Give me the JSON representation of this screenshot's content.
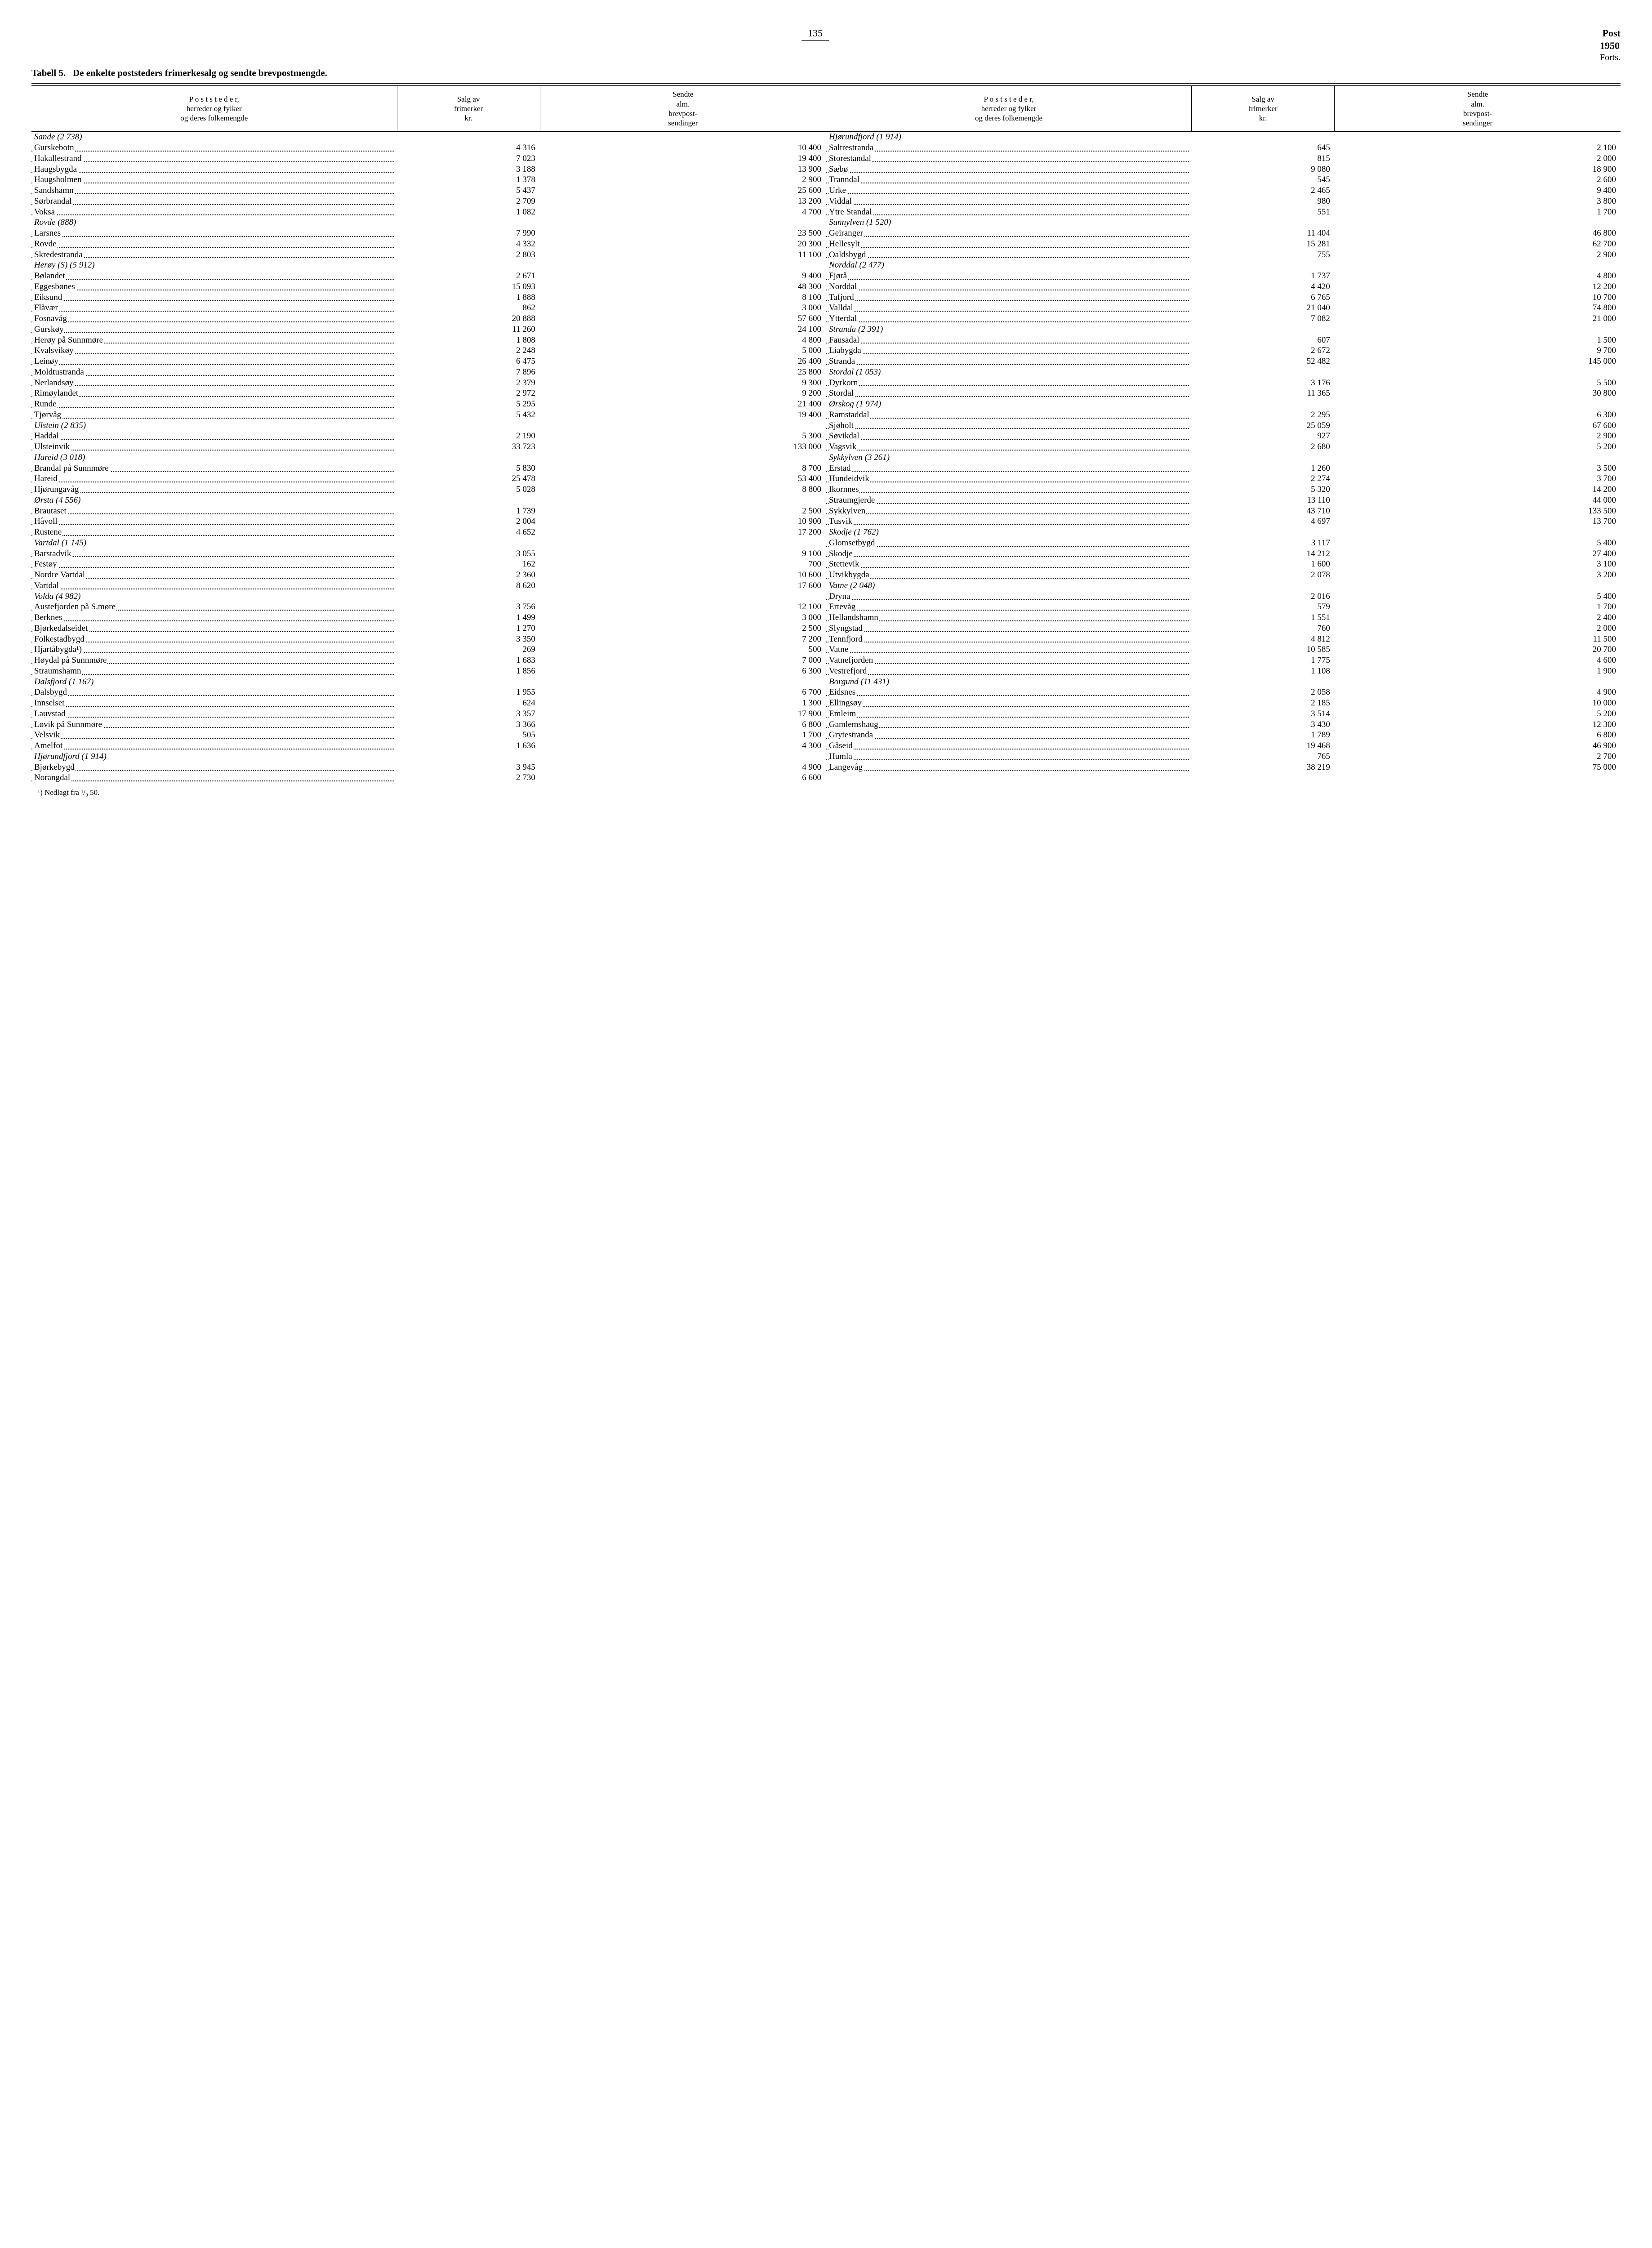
{
  "page_number": "135",
  "header_right": {
    "post": "Post",
    "year": "1950",
    "forts": "Forts."
  },
  "caption": {
    "number": "Tabell 5.",
    "text": "De enkelte poststeders frimerkesalg og sendte brevpostmengde."
  },
  "col_headers": {
    "places": "P o s t s t e d e r,\nherreder og fylker\nog deres folkemengde",
    "stamps": "Salg av\nfrimerker\nkr.",
    "mail": "Sendte\nalm.\nbrevpost-\nsendinger"
  },
  "thousand_sep": " ",
  "left_rows": [
    {
      "type": "group",
      "label": "Sande  (2 738)"
    },
    {
      "type": "row",
      "label": "Gurskebotn",
      "v1": 4316,
      "v2": 10400
    },
    {
      "type": "row",
      "label": "Hakallestrand",
      "v1": 7023,
      "v2": 19400
    },
    {
      "type": "row",
      "label": "Haugsbygda",
      "v1": 3188,
      "v2": 13900
    },
    {
      "type": "row",
      "label": "Haugsholmen",
      "v1": 1378,
      "v2": 2900
    },
    {
      "type": "row",
      "label": "Sandshamn",
      "v1": 5437,
      "v2": 25600
    },
    {
      "type": "row",
      "label": "Sørbrandal",
      "v1": 2709,
      "v2": 13200
    },
    {
      "type": "row",
      "label": "Voksa",
      "v1": 1082,
      "v2": 4700
    },
    {
      "type": "group",
      "label": "Rovde  (888)"
    },
    {
      "type": "row",
      "label": "Larsnes",
      "v1": 7990,
      "v2": 23500
    },
    {
      "type": "row",
      "label": "Rovde",
      "v1": 4332,
      "v2": 20300
    },
    {
      "type": "row",
      "label": "Skredestranda",
      "v1": 2803,
      "v2": 11100
    },
    {
      "type": "group",
      "label": "Herøy  (S)  (5 912)"
    },
    {
      "type": "row",
      "label": "Bølandet",
      "v1": 2671,
      "v2": 9400
    },
    {
      "type": "row",
      "label": "Eggesbønes",
      "v1": 15093,
      "v2": 48300
    },
    {
      "type": "row",
      "label": "Eiksund",
      "v1": 1888,
      "v2": 8100
    },
    {
      "type": "row",
      "label": "Flåvær",
      "v1": 862,
      "v2": 3000
    },
    {
      "type": "row",
      "label": "Fosnavåg",
      "v1": 20888,
      "v2": 57600
    },
    {
      "type": "row",
      "label": "Gurskøy",
      "v1": 11260,
      "v2": 24100
    },
    {
      "type": "row",
      "label": "Herøy på Sunnmøre",
      "v1": 1808,
      "v2": 4800
    },
    {
      "type": "row",
      "label": "Kvalsvikøy",
      "v1": 2248,
      "v2": 5000
    },
    {
      "type": "row",
      "label": "Leinøy",
      "v1": 6475,
      "v2": 26400
    },
    {
      "type": "row",
      "label": "Moldtustranda",
      "v1": 7896,
      "v2": 25800
    },
    {
      "type": "row",
      "label": "Nerlandsøy",
      "v1": 2379,
      "v2": 9300
    },
    {
      "type": "row",
      "label": "Rimøylandet",
      "v1": 2972,
      "v2": 9200
    },
    {
      "type": "row",
      "label": "Runde",
      "v1": 5295,
      "v2": 21400
    },
    {
      "type": "row",
      "label": "Tjørvåg",
      "v1": 5432,
      "v2": 19400
    },
    {
      "type": "group",
      "label": "Ulstein  (2 835)"
    },
    {
      "type": "row",
      "label": "Haddal",
      "v1": 2190,
      "v2": 5300
    },
    {
      "type": "row",
      "label": "Ulsteinvik",
      "v1": 33723,
      "v2": 133000
    },
    {
      "type": "group",
      "label": "Hareid  (3 018)"
    },
    {
      "type": "row",
      "label": "Brandal på Sunnmøre",
      "v1": 5830,
      "v2": 8700
    },
    {
      "type": "row",
      "label": "Hareid",
      "v1": 25478,
      "v2": 53400
    },
    {
      "type": "row",
      "label": "Hjørungavåg",
      "v1": 5028,
      "v2": 8800
    },
    {
      "type": "group",
      "label": "Ørsta  (4 556)"
    },
    {
      "type": "row",
      "label": "Brautaset",
      "v1": 1739,
      "v2": 2500
    },
    {
      "type": "row",
      "label": "Håvoll",
      "v1": 2004,
      "v2": 10900
    },
    {
      "type": "row",
      "label": "Rustene",
      "v1": 4652,
      "v2": 17200
    },
    {
      "type": "group",
      "label": "Vartdal  (1 145)"
    },
    {
      "type": "row",
      "label": "Barstadvik",
      "v1": 3055,
      "v2": 9100
    },
    {
      "type": "row",
      "label": "Festøy",
      "v1": 162,
      "v2": 700
    },
    {
      "type": "row",
      "label": "Nordre Vartdal",
      "v1": 2360,
      "v2": 10600
    },
    {
      "type": "row",
      "label": "Vartdal",
      "v1": 8620,
      "v2": 17600
    },
    {
      "type": "group",
      "label": "Volda  (4 982)"
    },
    {
      "type": "row",
      "label": "Austefjorden på S.møre",
      "v1": 3756,
      "v2": 12100
    },
    {
      "type": "row",
      "label": "Berknes",
      "v1": 1499,
      "v2": 3000
    },
    {
      "type": "row",
      "label": "Bjørkedalseidet",
      "v1": 1270,
      "v2": 2500
    },
    {
      "type": "row",
      "label": "Folkestadbygd",
      "v1": 3350,
      "v2": 7200
    },
    {
      "type": "row",
      "label": "Hjartåbygda¹)",
      "v1": 269,
      "v2": 500
    },
    {
      "type": "row",
      "label": "Høydal på Sunnmøre",
      "v1": 1683,
      "v2": 7000
    },
    {
      "type": "row",
      "label": "Straumshamn",
      "v1": 1856,
      "v2": 6300
    },
    {
      "type": "group",
      "label": "Dalsfjord  (1 167)"
    },
    {
      "type": "row",
      "label": "Dalsbygd",
      "v1": 1955,
      "v2": 6700
    },
    {
      "type": "row",
      "label": "Innselset",
      "v1": 624,
      "v2": 1300
    },
    {
      "type": "row",
      "label": "Lauvstad",
      "v1": 3357,
      "v2": 17900
    },
    {
      "type": "row",
      "label": "Løvik på Sunnmøre",
      "v1": 3366,
      "v2": 6800
    },
    {
      "type": "row",
      "label": "Velsvik",
      "v1": 505,
      "v2": 1700
    },
    {
      "type": "row",
      "label": "Amelfot",
      "v1": 1636,
      "v2": 4300
    },
    {
      "type": "group",
      "label": "Hjørundfjord  (1 914)"
    },
    {
      "type": "row",
      "label": "Bjørkebygd",
      "v1": 3945,
      "v2": 4900
    },
    {
      "type": "row",
      "label": "Norangdal",
      "v1": 2730,
      "v2": 6600
    }
  ],
  "right_rows": [
    {
      "type": "group",
      "label": "Hjørundfjord  (1 914)"
    },
    {
      "type": "row",
      "label": "Saltrestranda",
      "v1": 645,
      "v2": 2100
    },
    {
      "type": "row",
      "label": "Storestandal",
      "v1": 815,
      "v2": 2000
    },
    {
      "type": "row",
      "label": "Sæbø",
      "v1": 9080,
      "v2": 18900
    },
    {
      "type": "row",
      "label": "Tranndal",
      "v1": 545,
      "v2": 2600
    },
    {
      "type": "row",
      "label": "Urke",
      "v1": 2465,
      "v2": 9400
    },
    {
      "type": "row",
      "label": "Viddal",
      "v1": 980,
      "v2": 3800
    },
    {
      "type": "row",
      "label": "Ytre Standal",
      "v1": 551,
      "v2": 1700
    },
    {
      "type": "group",
      "label": "Sunnylven  (1 520)"
    },
    {
      "type": "row",
      "label": "Geiranger",
      "v1": 11404,
      "v2": 46800
    },
    {
      "type": "row",
      "label": "Hellesylt",
      "v1": 15281,
      "v2": 62700
    },
    {
      "type": "row",
      "label": "Oaldsbygd",
      "v1": 755,
      "v2": 2900
    },
    {
      "type": "group",
      "label": "Norddal  (2 477)"
    },
    {
      "type": "row",
      "label": "Fjørå",
      "v1": 1737,
      "v2": 4800
    },
    {
      "type": "row",
      "label": "Norddal",
      "v1": 4420,
      "v2": 12200
    },
    {
      "type": "row",
      "label": "Tafjord",
      "v1": 6765,
      "v2": 10700
    },
    {
      "type": "row",
      "label": "Valldal",
      "v1": 21040,
      "v2": 74800
    },
    {
      "type": "row",
      "label": "Ytterdal",
      "v1": 7082,
      "v2": 21000
    },
    {
      "type": "group",
      "label": "Stranda  (2 391)"
    },
    {
      "type": "row",
      "label": "Fausadal",
      "v1": 607,
      "v2": 1500
    },
    {
      "type": "row",
      "label": "Liabygda",
      "v1": 2672,
      "v2": 9700
    },
    {
      "type": "row",
      "label": "Stranda",
      "v1": 52482,
      "v2": 145000
    },
    {
      "type": "group",
      "label": "Stordal  (1 053)"
    },
    {
      "type": "row",
      "label": "Dyrkorn",
      "v1": 3176,
      "v2": 5500
    },
    {
      "type": "row",
      "label": "Stordal",
      "v1": 11365,
      "v2": 30800
    },
    {
      "type": "group",
      "label": "Ørskog  (1 974)"
    },
    {
      "type": "row",
      "label": "Ramstaddal",
      "v1": 2295,
      "v2": 6300
    },
    {
      "type": "row",
      "label": "Sjøholt",
      "v1": 25059,
      "v2": 67600
    },
    {
      "type": "row",
      "label": "Søvikdal",
      "v1": 927,
      "v2": 2900
    },
    {
      "type": "row",
      "label": "Vagsvik",
      "v1": 2680,
      "v2": 5200
    },
    {
      "type": "group",
      "label": "Sykkylven  (3 261)"
    },
    {
      "type": "row",
      "label": "Erstad",
      "v1": 1260,
      "v2": 3500
    },
    {
      "type": "row",
      "label": "Hundeidvik",
      "v1": 2274,
      "v2": 3700
    },
    {
      "type": "row",
      "label": "Ikornnes",
      "v1": 5320,
      "v2": 14200
    },
    {
      "type": "row",
      "label": "Straumgjerde",
      "v1": 13110,
      "v2": 44000
    },
    {
      "type": "row",
      "label": "Sykkylven",
      "v1": 43710,
      "v2": 133500
    },
    {
      "type": "row",
      "label": "Tusvik",
      "v1": 4697,
      "v2": 13700
    },
    {
      "type": "group",
      "label": "Skodje  (1 762)"
    },
    {
      "type": "row",
      "label": "Glomsetbygd",
      "v1": 3117,
      "v2": 5400
    },
    {
      "type": "row",
      "label": "Skodje",
      "v1": 14212,
      "v2": 27400
    },
    {
      "type": "row",
      "label": "Stettevik",
      "v1": 1600,
      "v2": 3100
    },
    {
      "type": "row",
      "label": "Utvikbygda",
      "v1": 2078,
      "v2": 3200
    },
    {
      "type": "group",
      "label": "Vatne  (2 048)"
    },
    {
      "type": "row",
      "label": "Dryna",
      "v1": 2016,
      "v2": 5400
    },
    {
      "type": "row",
      "label": "Ertevåg",
      "v1": 579,
      "v2": 1700
    },
    {
      "type": "row",
      "label": "Hellandshamn",
      "v1": 1551,
      "v2": 2400
    },
    {
      "type": "row",
      "label": "Slyngstad",
      "v1": 760,
      "v2": 2000
    },
    {
      "type": "row",
      "label": "Tennfjord",
      "v1": 4812,
      "v2": 11500
    },
    {
      "type": "row",
      "label": "Vatne",
      "v1": 10585,
      "v2": 20700
    },
    {
      "type": "row",
      "label": "Vatnefjorden",
      "v1": 1775,
      "v2": 4600
    },
    {
      "type": "row",
      "label": "Vestrefjord",
      "v1": 1108,
      "v2": 1900
    },
    {
      "type": "group",
      "label": "Borgund  (11 431)"
    },
    {
      "type": "row",
      "label": "Eidsnes",
      "v1": 2058,
      "v2": 4900
    },
    {
      "type": "row",
      "label": "Ellingsøy",
      "v1": 2185,
      "v2": 10000
    },
    {
      "type": "row",
      "label": "Emleim",
      "v1": 3514,
      "v2": 5200
    },
    {
      "type": "row",
      "label": "Gamlemshaug",
      "v1": 3430,
      "v2": 12300
    },
    {
      "type": "row",
      "label": "Grytestranda",
      "v1": 1789,
      "v2": 6800
    },
    {
      "type": "row",
      "label": "Gåseid",
      "v1": 19468,
      "v2": 46900
    },
    {
      "type": "row",
      "label": "Humla",
      "v1": 765,
      "v2": 2700
    },
    {
      "type": "row",
      "label": "Langevåg",
      "v1": 38219,
      "v2": 75000
    }
  ],
  "footnote": "¹) Nedlagt fra ¹/₉ 50.",
  "col_widths": {
    "label_pct": 23,
    "num_pct": 9
  }
}
